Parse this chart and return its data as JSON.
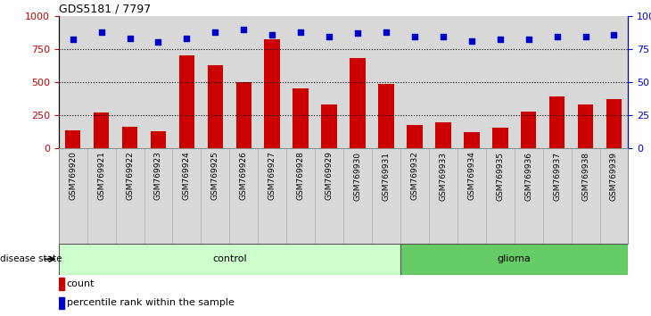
{
  "title": "GDS5181 / 7797",
  "samples": [
    "GSM769920",
    "GSM769921",
    "GSM769922",
    "GSM769923",
    "GSM769924",
    "GSM769925",
    "GSM769926",
    "GSM769927",
    "GSM769928",
    "GSM769929",
    "GSM769930",
    "GSM769931",
    "GSM769932",
    "GSM769933",
    "GSM769934",
    "GSM769935",
    "GSM769936",
    "GSM769937",
    "GSM769938",
    "GSM769939"
  ],
  "counts": [
    140,
    270,
    165,
    130,
    700,
    625,
    500,
    820,
    455,
    335,
    680,
    490,
    175,
    195,
    125,
    160,
    275,
    395,
    330,
    375
  ],
  "percentiles": [
    82,
    88,
    83,
    80,
    83,
    88,
    90,
    86,
    88,
    84,
    87,
    88,
    84,
    84,
    81,
    82,
    82,
    84,
    84,
    86
  ],
  "control_count": 12,
  "glioma_count": 8,
  "bar_color": "#cc0000",
  "dot_color": "#0000cc",
  "control_color": "#ccffcc",
  "glioma_color": "#66cc66",
  "control_label": "control",
  "glioma_label": "glioma",
  "left_ylim": [
    0,
    1000
  ],
  "right_ylim": [
    0,
    100
  ],
  "left_yticks": [
    0,
    250,
    500,
    750,
    1000
  ],
  "right_yticks": [
    0,
    25,
    50,
    75,
    100
  ],
  "right_yticklabels": [
    "0",
    "25",
    "50",
    "75",
    "100%"
  ],
  "legend_count_label": "count",
  "legend_pct_label": "percentile rank within the sample",
  "disease_state_label": "disease state",
  "hgrid_vals": [
    250,
    500,
    750
  ],
  "col_bg_light": "#d8d8d8",
  "col_bg_dark": "#c8c8c8"
}
